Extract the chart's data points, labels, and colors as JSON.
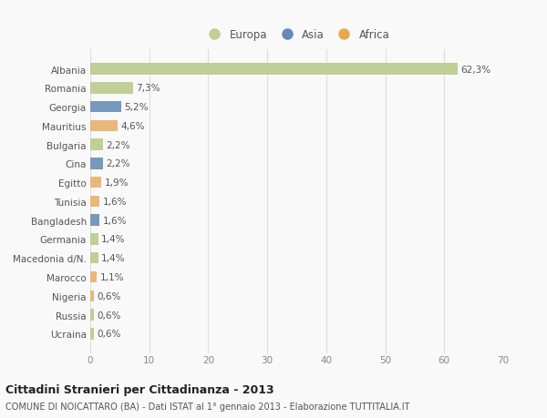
{
  "countries": [
    "Albania",
    "Romania",
    "Georgia",
    "Mauritius",
    "Bulgaria",
    "Cina",
    "Egitto",
    "Tunisia",
    "Bangladesh",
    "Germania",
    "Macedonia d/N.",
    "Marocco",
    "Nigeria",
    "Russia",
    "Ucraina"
  ],
  "values": [
    62.3,
    7.3,
    5.2,
    4.6,
    2.2,
    2.2,
    1.9,
    1.6,
    1.6,
    1.4,
    1.4,
    1.1,
    0.6,
    0.6,
    0.6
  ],
  "labels": [
    "62,3%",
    "7,3%",
    "5,2%",
    "4,6%",
    "2,2%",
    "2,2%",
    "1,9%",
    "1,6%",
    "1,6%",
    "1,4%",
    "1,4%",
    "1,1%",
    "0,6%",
    "0,6%",
    "0,6%"
  ],
  "continents": [
    "Europa",
    "Europa",
    "Asia",
    "Africa",
    "Europa",
    "Asia",
    "Africa",
    "Africa",
    "Asia",
    "Europa",
    "Europa",
    "Africa",
    "Africa",
    "Europa",
    "Europa"
  ],
  "bar_colors": {
    "Europa": "#bfcf96",
    "Asia": "#7799bb",
    "Africa": "#e8b87a"
  },
  "legend_colors": {
    "Europa": "#bfcf96",
    "Asia": "#6688bb",
    "Africa": "#e8a850"
  },
  "xlim": [
    0,
    70
  ],
  "xticks": [
    0,
    10,
    20,
    30,
    40,
    50,
    60,
    70
  ],
  "title": "Cittadini Stranieri per Cittadinanza - 2013",
  "subtitle": "COMUNE DI NOICATTARO (BA) - Dati ISTAT al 1° gennaio 2013 - Elaborazione TUTTITALIA.IT",
  "bg_color": "#f9f9f9",
  "grid_color": "#dddddd",
  "bar_height": 0.6,
  "legend_entries": [
    "Europa",
    "Asia",
    "Africa"
  ]
}
